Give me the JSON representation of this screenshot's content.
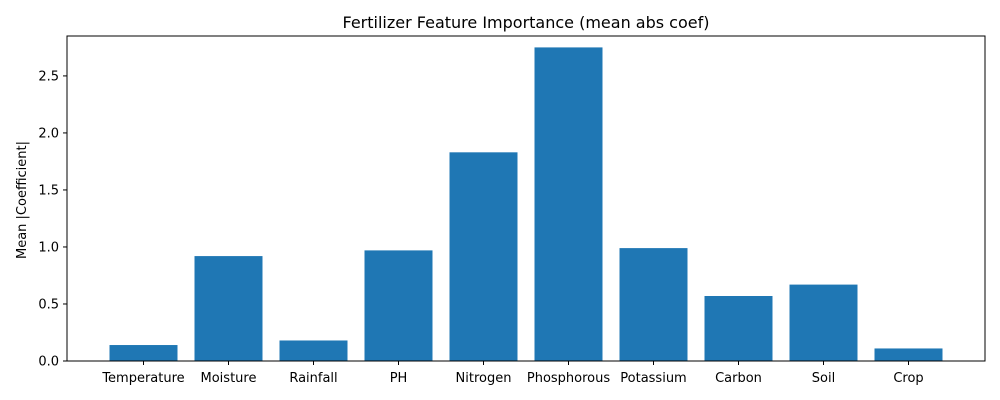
{
  "chart_data": {
    "type": "bar",
    "title": "Fertilizer Feature Importance (mean abs coef)",
    "xlabel": "",
    "ylabel": "Mean |Coefficient|",
    "categories": [
      "Temperature",
      "Moisture",
      "Rainfall",
      "PH",
      "Nitrogen",
      "Phosphorous",
      "Potassium",
      "Carbon",
      "Soil",
      "Crop"
    ],
    "values": [
      0.14,
      0.92,
      0.18,
      0.97,
      1.83,
      2.75,
      0.99,
      0.57,
      0.67,
      0.11
    ],
    "ylim": [
      0,
      2.85
    ],
    "yticks": [
      "0.0",
      "0.5",
      "1.0",
      "1.5",
      "2.0",
      "2.5"
    ],
    "bar_color": "#1f77b4",
    "grid": false,
    "legend": "none"
  }
}
